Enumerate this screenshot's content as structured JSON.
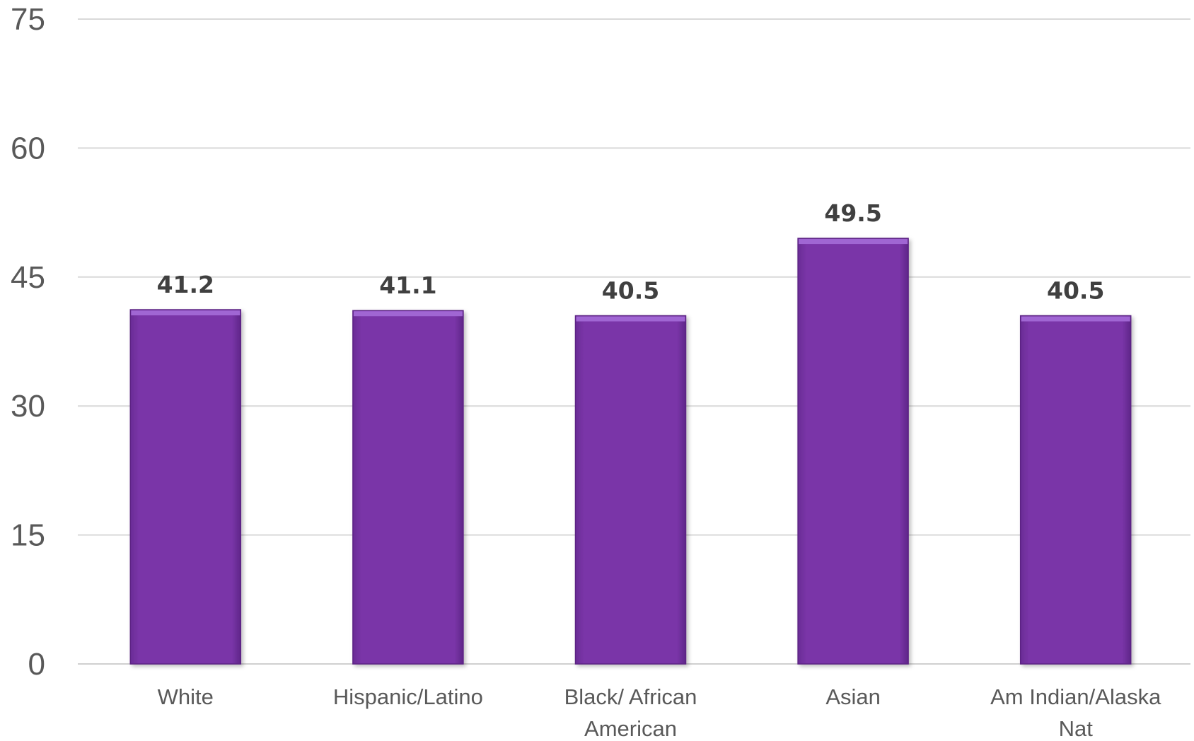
{
  "chart_data": {
    "type": "bar",
    "title": "",
    "xlabel": "",
    "ylabel": "",
    "categories": [
      [
        "White"
      ],
      [
        "Hispanic/Latino"
      ],
      [
        "Black/ African",
        "American"
      ],
      [
        "Asian"
      ],
      [
        "Am Indian/Alaska",
        "Nat"
      ]
    ],
    "values": [
      41.2,
      41.1,
      40.5,
      49.5,
      40.5
    ],
    "value_labels": [
      "41.2",
      "41.1",
      "40.5",
      "49.5",
      "40.5"
    ],
    "ylim": [
      0,
      75
    ],
    "yticks": [
      0,
      15,
      30,
      45,
      60,
      75
    ],
    "grid": true,
    "legend": "none",
    "colors": {
      "bar": "#7a35a8",
      "bar_top": "#a066d3",
      "bar_edge": "#5c2484",
      "gridline": "#d9d9d9",
      "tick_text": "#595959",
      "data_label_text": "#404040"
    }
  }
}
